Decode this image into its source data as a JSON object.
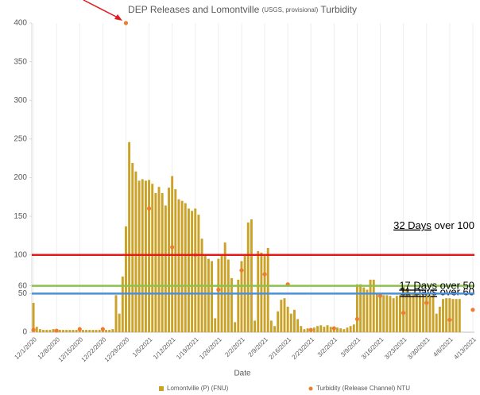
{
  "chart_data": {
    "type": "bar",
    "title_parts": [
      "DEP Releases and Lomontville ",
      "(USGS, provisional)",
      " Turbidity"
    ],
    "x_label": "Date",
    "categories": [
      "12/1/2020",
      null,
      null,
      null,
      null,
      null,
      null,
      "12/8/2020",
      null,
      null,
      null,
      null,
      null,
      null,
      "12/15/2020",
      null,
      null,
      null,
      null,
      null,
      null,
      "12/22/2020",
      null,
      null,
      null,
      null,
      null,
      null,
      "12/29/2020",
      null,
      null,
      null,
      null,
      null,
      null,
      "1/5/2021",
      null,
      null,
      null,
      null,
      null,
      null,
      "1/12/2021",
      null,
      null,
      null,
      null,
      null,
      null,
      "1/19/2021",
      null,
      null,
      null,
      null,
      null,
      null,
      "1/26/2021",
      null,
      null,
      null,
      null,
      null,
      null,
      "2/2/2021",
      null,
      null,
      null,
      null,
      null,
      null,
      "2/9/2021",
      null,
      null,
      null,
      null,
      null,
      null,
      "2/16/2021",
      null,
      null,
      null,
      null,
      null,
      null,
      "2/23/2021",
      null,
      null,
      null,
      null,
      null,
      null,
      "3/2/2021",
      null,
      null,
      null,
      null,
      null,
      null,
      "3/9/2021",
      null,
      null,
      null,
      null,
      null,
      null,
      "3/16/2021",
      null,
      null,
      null,
      null,
      null,
      null,
      "3/23/2021",
      null,
      null,
      null,
      null,
      null,
      null,
      "3/30/2021",
      null,
      null,
      null,
      null,
      null,
      null,
      "4/6/2021",
      null,
      null,
      null,
      null,
      null,
      null,
      "4/13/2021"
    ],
    "series": [
      {
        "name": "Lomontville (P) (FNU)",
        "type": "bar",
        "color": "#c9a227",
        "values": [
          38,
          7,
          4,
          3,
          3,
          3,
          4,
          3,
          3,
          3,
          3,
          3,
          3,
          3,
          3,
          3,
          3,
          3,
          3,
          3,
          3,
          3,
          3,
          3,
          4,
          48,
          24,
          72,
          137,
          246,
          219,
          208,
          196,
          198,
          196,
          197,
          192,
          180,
          188,
          180,
          164,
          187,
          202,
          185,
          172,
          170,
          167,
          160,
          157,
          160,
          152,
          121,
          100,
          95,
          92,
          18,
          95,
          100,
          116,
          94,
          70,
          13,
          68,
          92,
          101,
          142,
          146,
          15,
          105,
          103,
          100,
          109,
          15,
          8,
          27,
          42,
          44,
          33,
          24,
          29,
          17,
          8,
          4,
          5,
          5,
          6,
          8,
          9,
          7,
          9,
          7,
          7,
          6,
          5,
          4,
          6,
          8,
          10,
          62,
          62,
          58,
          55,
          68,
          68,
          50,
          50,
          48,
          48,
          47,
          44,
          47,
          48,
          60,
          55,
          52,
          52,
          50,
          50,
          50,
          50,
          48,
          48,
          24,
          33,
          43,
          44,
          44,
          43,
          43,
          43,
          null,
          null,
          null,
          null
        ]
      },
      {
        "name": "Turbidity (Release Channel) NTU",
        "type": "scatter",
        "color": "#ed7d31",
        "values": [
          3,
          null,
          null,
          null,
          null,
          null,
          null,
          2,
          null,
          null,
          null,
          null,
          null,
          null,
          4,
          null,
          null,
          null,
          null,
          null,
          null,
          4,
          null,
          null,
          null,
          null,
          null,
          null,
          400,
          null,
          null,
          null,
          null,
          null,
          null,
          160,
          null,
          null,
          null,
          null,
          null,
          null,
          110,
          null,
          null,
          null,
          null,
          null,
          null,
          100,
          null,
          null,
          null,
          null,
          null,
          null,
          55,
          null,
          null,
          null,
          null,
          null,
          null,
          80,
          null,
          null,
          null,
          null,
          null,
          null,
          75,
          null,
          null,
          null,
          null,
          null,
          null,
          62,
          null,
          null,
          null,
          null,
          null,
          null,
          3,
          null,
          null,
          null,
          null,
          null,
          null,
          5,
          null,
          null,
          null,
          null,
          null,
          null,
          17,
          null,
          null,
          null,
          null,
          null,
          null,
          47,
          null,
          null,
          null,
          null,
          null,
          null,
          25,
          null,
          null,
          null,
          null,
          null,
          null,
          38,
          null,
          null,
          null,
          null,
          null,
          null,
          16,
          null,
          null,
          null,
          null,
          null,
          null,
          29
        ]
      }
    ],
    "ylim": [
      0,
      400
    ],
    "yticks": [
      0,
      50,
      60,
      100,
      150,
      200,
      250,
      300,
      350,
      400
    ],
    "thresholds": [
      {
        "value": 100,
        "color": "#e31a1c",
        "label_underlined": "32 Days",
        "label": " over 100"
      },
      {
        "value": 60,
        "color": "#8bc34a",
        "label_underlined": "11 Days",
        "label": " over 60"
      },
      {
        "value": 50,
        "color": "#4a90d9",
        "label_underlined": "17 Days",
        "label": " over 50"
      }
    ]
  }
}
